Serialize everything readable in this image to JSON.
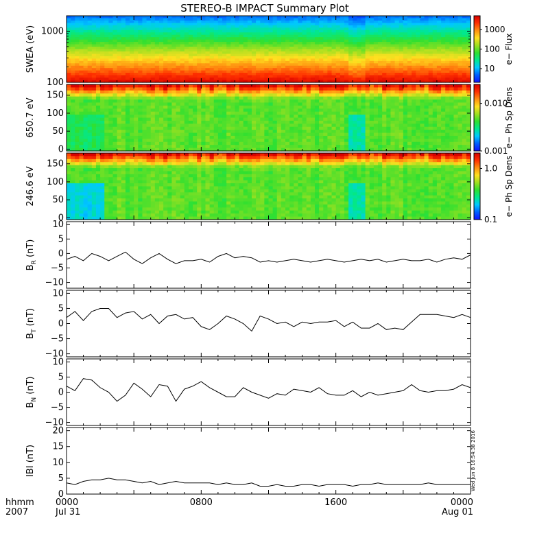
{
  "title": "STEREO-B IMPACT Summary Plot",
  "stamp": "Wed Jun  8 16:54:38 2016",
  "time_axis": {
    "row_label": "hhmm",
    "year": "2007",
    "ticks": [
      {
        "h": 0,
        "time": "0000",
        "date": "Jul 31"
      },
      {
        "h": 8,
        "time": "0800",
        "date": ""
      },
      {
        "h": 16,
        "time": "1600",
        "date": ""
      },
      {
        "h": 24,
        "time": "0000",
        "date": "Aug 01"
      }
    ],
    "range_hours": [
      0,
      24
    ]
  },
  "colors": {
    "spectrum": [
      "#1010ff",
      "#0060ff",
      "#00c8ff",
      "#00e890",
      "#30e030",
      "#a0e020",
      "#ffe020",
      "#ff9010",
      "#ff3000",
      "#d80000"
    ],
    "line": "#000000"
  },
  "chart_data": [
    {
      "type": "heatmap",
      "id": "swea",
      "ylabel": "SWEA (eV)",
      "ylim": [
        100,
        2000
      ],
      "ylog": true,
      "yticks": [
        {
          "v": 100,
          "t": "100"
        },
        {
          "v": 1000,
          "t": "1000"
        }
      ],
      "colorbar": {
        "label": "e−  Flux",
        "log": true,
        "range": [
          2,
          5000
        ],
        "ticks": [
          {
            "v": 10,
            "t": "10"
          },
          {
            "v": 100,
            "t": "100"
          },
          {
            "v": 1000,
            "t": "1000"
          }
        ]
      }
    },
    {
      "type": "heatmap",
      "id": "pad650",
      "ylabel": "650.7 eV",
      "ylim": [
        -5,
        180
      ],
      "ylog": false,
      "yticks": [
        {
          "v": 0,
          "t": "0"
        },
        {
          "v": 50,
          "t": "50"
        },
        {
          "v": 100,
          "t": "100"
        },
        {
          "v": 150,
          "t": "150"
        }
      ],
      "colorbar": {
        "label": "e−  Ph Sp Dens",
        "log": true,
        "range": [
          0.001,
          0.025
        ],
        "ticks": [
          {
            "v": 0.001,
            "t": "0.001"
          },
          {
            "v": 0.01,
            "t": "0.010"
          }
        ]
      }
    },
    {
      "type": "heatmap",
      "id": "pad246",
      "ylabel": "246.6 eV",
      "ylim": [
        -5,
        180
      ],
      "ylog": false,
      "yticks": [
        {
          "v": 0,
          "t": "0"
        },
        {
          "v": 50,
          "t": "50"
        },
        {
          "v": 100,
          "t": "100"
        },
        {
          "v": 150,
          "t": "150"
        }
      ],
      "colorbar": {
        "label": "e−  Ph Sp Dens",
        "log": true,
        "range": [
          0.1,
          2.0
        ],
        "ticks": [
          {
            "v": 0.1,
            "t": "0.1"
          },
          {
            "v": 1.0,
            "t": "1.0"
          }
        ]
      }
    },
    {
      "type": "line",
      "id": "br",
      "ylabel": "B",
      "ylabel_sub": "R",
      "ylabel_unit": " (nT)",
      "ylim": [
        -12,
        11
      ],
      "yticks": [
        {
          "v": -10,
          "t": "−10"
        },
        {
          "v": -5,
          "t": "−5"
        },
        {
          "v": 0,
          "t": "0"
        },
        {
          "v": 5,
          "t": "5"
        },
        {
          "v": 10,
          "t": "10"
        }
      ],
      "x": [
        0,
        0.5,
        1,
        1.5,
        2,
        2.5,
        3,
        3.5,
        4,
        4.5,
        5,
        5.5,
        6,
        6.5,
        7,
        7.5,
        8,
        8.5,
        9,
        9.5,
        10,
        10.5,
        11,
        11.5,
        12,
        12.5,
        13,
        13.5,
        14,
        14.5,
        15,
        15.5,
        16,
        16.5,
        17,
        17.5,
        18,
        18.5,
        19,
        19.5,
        20,
        20.5,
        21,
        21.5,
        22,
        22.5,
        23,
        23.5,
        24
      ],
      "values": [
        -2,
        -1,
        -2.5,
        0,
        -1,
        -2.5,
        -1,
        0.5,
        -2,
        -3.5,
        -1.5,
        0,
        -2,
        -3.5,
        -2.5,
        -2.5,
        -2,
        -3,
        -1,
        0,
        -1.5,
        -1,
        -1.5,
        -3,
        -2.5,
        -3,
        -2.5,
        -2,
        -2.5,
        -3,
        -2.5,
        -2,
        -2.5,
        -3,
        -2.5,
        -2,
        -2.5,
        -2,
        -3,
        -2.5,
        -2,
        -2.5,
        -2.5,
        -2,
        -3,
        -2,
        -1.5,
        -2,
        -0.5
      ]
    },
    {
      "type": "line",
      "id": "bt",
      "ylabel": "B",
      "ylabel_sub": "T",
      "ylabel_unit": " (nT)",
      "ylim": [
        -11,
        11
      ],
      "yticks": [
        {
          "v": -10,
          "t": "−10"
        },
        {
          "v": -5,
          "t": "−5"
        },
        {
          "v": 0,
          "t": "0"
        },
        {
          "v": 5,
          "t": "5"
        },
        {
          "v": 10,
          "t": "10"
        }
      ],
      "x": [
        0,
        0.5,
        1,
        1.5,
        2,
        2.5,
        3,
        3.5,
        4,
        4.5,
        5,
        5.5,
        6,
        6.5,
        7,
        7.5,
        8,
        8.5,
        9,
        9.5,
        10,
        10.5,
        11,
        11.5,
        12,
        12.5,
        13,
        13.5,
        14,
        14.5,
        15,
        15.5,
        16,
        16.5,
        17,
        17.5,
        18,
        18.5,
        19,
        19.5,
        20,
        20.5,
        21,
        21.5,
        22,
        22.5,
        23,
        23.5,
        24
      ],
      "values": [
        2,
        4,
        1,
        4,
        5,
        5,
        2,
        3.5,
        4,
        1.5,
        3,
        0,
        2.5,
        3,
        1.5,
        2,
        -1,
        -2,
        0,
        2.5,
        1.5,
        0,
        -2.5,
        2.5,
        1.5,
        0,
        0.5,
        -1,
        0.5,
        0,
        0.5,
        0.5,
        1,
        -1,
        0.5,
        -1.5,
        -1.5,
        0,
        -2,
        -1.5,
        -2,
        0.5,
        3,
        3,
        3,
        2.5,
        2,
        3,
        2
      ]
    },
    {
      "type": "line",
      "id": "bn",
      "ylabel": "B",
      "ylabel_sub": "N",
      "ylabel_unit": " (nT)",
      "ylim": [
        -11,
        11
      ],
      "yticks": [
        {
          "v": -10,
          "t": "−10"
        },
        {
          "v": -5,
          "t": "−5"
        },
        {
          "v": 0,
          "t": "0"
        },
        {
          "v": 5,
          "t": "5"
        },
        {
          "v": 10,
          "t": "10"
        }
      ],
      "x": [
        0,
        0.5,
        1,
        1.5,
        2,
        2.5,
        3,
        3.5,
        4,
        4.5,
        5,
        5.5,
        6,
        6.5,
        7,
        7.5,
        8,
        8.5,
        9,
        9.5,
        10,
        10.5,
        11,
        11.5,
        12,
        12.5,
        13,
        13.5,
        14,
        14.5,
        15,
        15.5,
        16,
        16.5,
        17,
        17.5,
        18,
        18.5,
        19,
        19.5,
        20,
        20.5,
        21,
        21.5,
        22,
        22.5,
        23,
        23.5,
        24
      ],
      "values": [
        2,
        0.5,
        4.5,
        4,
        1.5,
        0,
        -3,
        -1,
        3,
        1,
        -1.5,
        2.5,
        2,
        -3,
        1,
        2,
        3.5,
        1.5,
        0,
        -1.5,
        -1.5,
        1.5,
        0,
        -1,
        -2,
        -0.5,
        -1,
        1,
        0.5,
        0,
        1.5,
        -0.5,
        -1,
        -1,
        0.5,
        -1.5,
        0,
        -1,
        -0.5,
        0,
        0.5,
        2.5,
        0.5,
        0,
        0.5,
        0.5,
        1,
        2.5,
        1.5
      ]
    },
    {
      "type": "line",
      "id": "bmag",
      "ylabel": "IBI (nT)",
      "ylim": [
        0,
        21
      ],
      "yticks": [
        {
          "v": 0,
          "t": "0"
        },
        {
          "v": 5,
          "t": "5"
        },
        {
          "v": 10,
          "t": "10"
        },
        {
          "v": 15,
          "t": "15"
        },
        {
          "v": 20,
          "t": "20"
        }
      ],
      "x": [
        0,
        0.5,
        1,
        1.5,
        2,
        2.5,
        3,
        3.5,
        4,
        4.5,
        5,
        5.5,
        6,
        6.5,
        7,
        7.5,
        8,
        8.5,
        9,
        9.5,
        10,
        10.5,
        11,
        11.5,
        12,
        12.5,
        13,
        13.5,
        14,
        14.5,
        15,
        15.5,
        16,
        16.5,
        17,
        17.5,
        18,
        18.5,
        19,
        19.5,
        20,
        20.5,
        21,
        21.5,
        22,
        22.5,
        23,
        23.5,
        24
      ],
      "values": [
        3.5,
        3,
        4,
        4.5,
        4.5,
        5,
        4.5,
        4.5,
        4,
        3.5,
        4,
        3,
        3.5,
        4,
        3.5,
        3.5,
        3.5,
        3.5,
        3,
        3.5,
        3,
        3,
        3.5,
        2.5,
        2.5,
        3,
        2.5,
        2.5,
        3,
        3,
        2.5,
        3,
        3,
        3,
        2.5,
        3,
        3,
        3.5,
        3,
        3,
        3,
        3,
        3,
        3.5,
        3,
        3,
        3,
        3,
        3
      ]
    }
  ]
}
